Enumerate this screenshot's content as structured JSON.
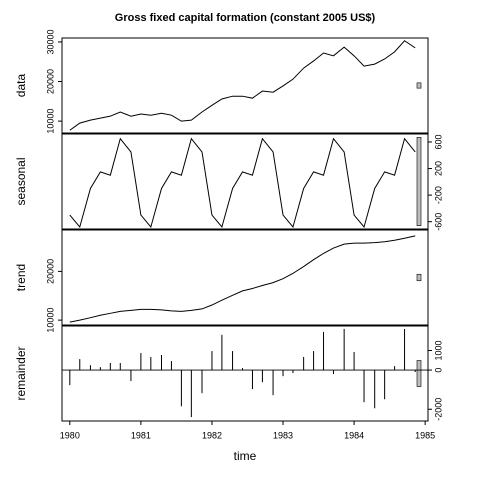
{
  "chart_data": [
    {
      "type": "line",
      "title": "Gross fixed capital formation (constant 2005 US$)",
      "ylabel": "data",
      "axis_side": "left",
      "color": "#000000",
      "scale_bar_color": "#bebebe",
      "x": [
        1980,
        1980.14,
        1980.29,
        1980.43,
        1980.57,
        1980.71,
        1980.86,
        1981,
        1981.14,
        1981.29,
        1981.43,
        1981.57,
        1981.71,
        1981.86,
        1982,
        1982.14,
        1982.29,
        1982.43,
        1982.57,
        1982.71,
        1982.86,
        1983,
        1983.14,
        1983.29,
        1983.43,
        1983.57,
        1983.71,
        1983.86,
        1984,
        1984.14,
        1984.29,
        1984.43,
        1984.57,
        1984.71,
        1984.86
      ],
      "values": [
        7700,
        9500,
        10250,
        10750,
        11250,
        12300,
        11250,
        11800,
        11500,
        12000,
        11500,
        10000,
        10250,
        12300,
        14000,
        15600,
        16300,
        16300,
        15800,
        17600,
        17300,
        18900,
        20600,
        23400,
        25200,
        27200,
        26500,
        28700,
        26500,
        23900,
        24400,
        25700,
        27500,
        30300,
        28500
      ],
      "xlim": [
        1979.89,
        1985.04
      ],
      "ylim": [
        7000,
        31000
      ],
      "yticks": [
        10000,
        20000,
        30000
      ]
    },
    {
      "type": "line",
      "ylabel": "seasonal",
      "axis_side": "right",
      "color": "#000000",
      "scale_bar_color": "#bebebe",
      "x": [
        1980,
        1980.14,
        1980.29,
        1980.43,
        1980.57,
        1980.71,
        1980.86,
        1981,
        1981.14,
        1981.29,
        1981.43,
        1981.57,
        1981.71,
        1981.86,
        1982,
        1982.14,
        1982.29,
        1982.43,
        1982.57,
        1982.71,
        1982.86,
        1983,
        1983.14,
        1983.29,
        1983.43,
        1983.57,
        1983.71,
        1983.86,
        1984,
        1984.14,
        1984.29,
        1984.43,
        1984.57,
        1984.71,
        1984.86
      ],
      "values": [
        -500,
        -680,
        -100,
        150,
        100,
        650,
        450,
        -500,
        -680,
        -100,
        150,
        100,
        650,
        450,
        -500,
        -680,
        -100,
        150,
        100,
        650,
        450,
        -500,
        -680,
        -100,
        150,
        100,
        650,
        450,
        -500,
        -680,
        -100,
        150,
        100,
        650,
        450
      ],
      "xlim": [
        1979.89,
        1985.04
      ],
      "ylim": [
        -710,
        720
      ],
      "yticks": [
        -600,
        -200,
        200,
        600
      ]
    },
    {
      "type": "line",
      "ylabel": "trend",
      "axis_side": "left",
      "color": "#000000",
      "scale_bar_color": "#bebebe",
      "x": [
        1980,
        1980.14,
        1980.29,
        1980.43,
        1980.57,
        1980.71,
        1980.86,
        1981,
        1981.14,
        1981.29,
        1981.43,
        1981.57,
        1981.71,
        1981.86,
        1982,
        1982.14,
        1982.29,
        1982.43,
        1982.57,
        1982.71,
        1982.86,
        1983,
        1983.14,
        1983.29,
        1983.43,
        1983.57,
        1983.71,
        1983.86,
        1984,
        1984.14,
        1984.29,
        1984.43,
        1984.57,
        1984.71,
        1984.86
      ],
      "values": [
        9600,
        10000,
        10500,
        11000,
        11400,
        11800,
        12000,
        12200,
        12200,
        12100,
        11900,
        11800,
        12000,
        12300,
        13100,
        14100,
        15100,
        16000,
        16500,
        17100,
        17700,
        18500,
        19600,
        21000,
        22400,
        23700,
        24800,
        25600,
        25800,
        25800,
        25900,
        26100,
        26400,
        26800,
        27300
      ],
      "xlim": [
        1979.89,
        1985.04
      ],
      "ylim": [
        9000,
        28500
      ],
      "yticks": [
        10000,
        20000
      ]
    },
    {
      "type": "bar",
      "ylabel": "remainder",
      "xlabel": "time",
      "axis_side": "right",
      "color": "#000000",
      "scale_bar_color": "#bebebe",
      "x": [
        1980,
        1980.14,
        1980.29,
        1980.43,
        1980.57,
        1980.71,
        1980.86,
        1981,
        1981.14,
        1981.29,
        1981.43,
        1981.57,
        1981.71,
        1981.86,
        1982,
        1982.14,
        1982.29,
        1982.43,
        1982.57,
        1982.71,
        1982.86,
        1983,
        1983.14,
        1983.29,
        1983.43,
        1983.57,
        1983.71,
        1983.86,
        1984,
        1984.14,
        1984.29,
        1984.43,
        1984.57,
        1984.71,
        1984.86
      ],
      "values": [
        -770,
        560,
        250,
        150,
        360,
        360,
        -560,
        870,
        670,
        770,
        460,
        -1850,
        -2400,
        -1180,
        970,
        1800,
        970,
        100,
        -970,
        -620,
        -1280,
        -310,
        -150,
        670,
        970,
        1950,
        -200,
        2100,
        920,
        -1640,
        -1950,
        -1490,
        200,
        2100,
        -100
      ],
      "xlim": [
        1979.89,
        1985.04
      ],
      "ylim": [
        -2600,
        2250
      ],
      "yticks": [
        -2000,
        0,
        1000
      ],
      "xticks": [
        1980,
        1981,
        1982,
        1983,
        1984,
        1985
      ]
    }
  ]
}
